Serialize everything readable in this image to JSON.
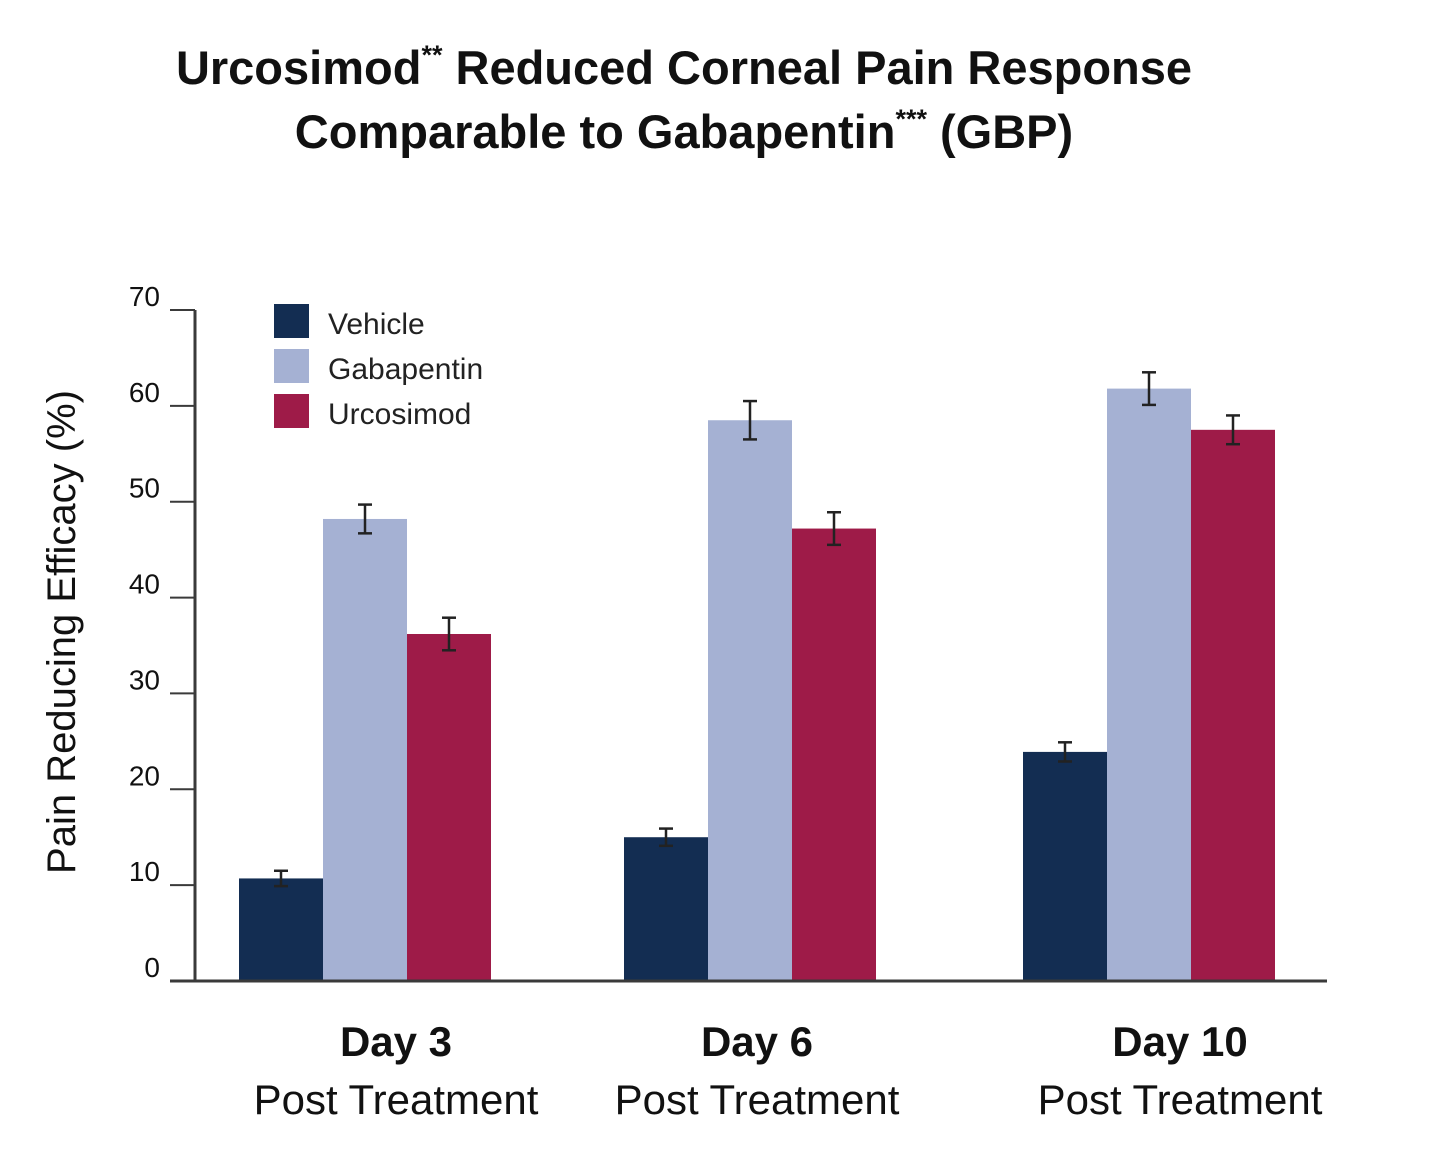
{
  "title": {
    "line1_main": "Urcosimod",
    "line1_sup": "**",
    "line1_rest": " Reduced Corneal Pain Response",
    "line2_main": "Comparable to Gabapentin",
    "line2_sup": "***",
    "line2_rest": " (GBP)"
  },
  "chart_data": {
    "type": "bar",
    "title": "Urcosimod** Reduced Corneal Pain Response Comparable to Gabapentin*** (GBP)",
    "ylabel": "Pain Reducing Efficacy (%)",
    "xlabel": "",
    "ylim": [
      0,
      70
    ],
    "yticks": [
      0,
      10,
      20,
      30,
      40,
      50,
      60,
      70
    ],
    "categories": [
      {
        "line1": "Day 3",
        "line2": "Post Treatment"
      },
      {
        "line1": "Day 6",
        "line2": "Post Treatment"
      },
      {
        "line1": "Day 10",
        "line2": "Post Treatment"
      }
    ],
    "series": [
      {
        "name": "Vehicle",
        "color": "#132d52",
        "values": [
          10.7,
          15.0,
          23.9
        ],
        "errors": [
          0.8,
          0.9,
          1.0
        ]
      },
      {
        "name": "Gabapentin",
        "color": "#a5b1d3",
        "values": [
          48.2,
          58.5,
          61.8
        ],
        "errors": [
          1.5,
          2.0,
          1.7
        ]
      },
      {
        "name": "Urcosimod",
        "color": "#9e1b48",
        "values": [
          36.2,
          47.2,
          57.5
        ],
        "errors": [
          1.7,
          1.7,
          1.5
        ]
      }
    ],
    "legend": "top-left",
    "grid": false
  }
}
